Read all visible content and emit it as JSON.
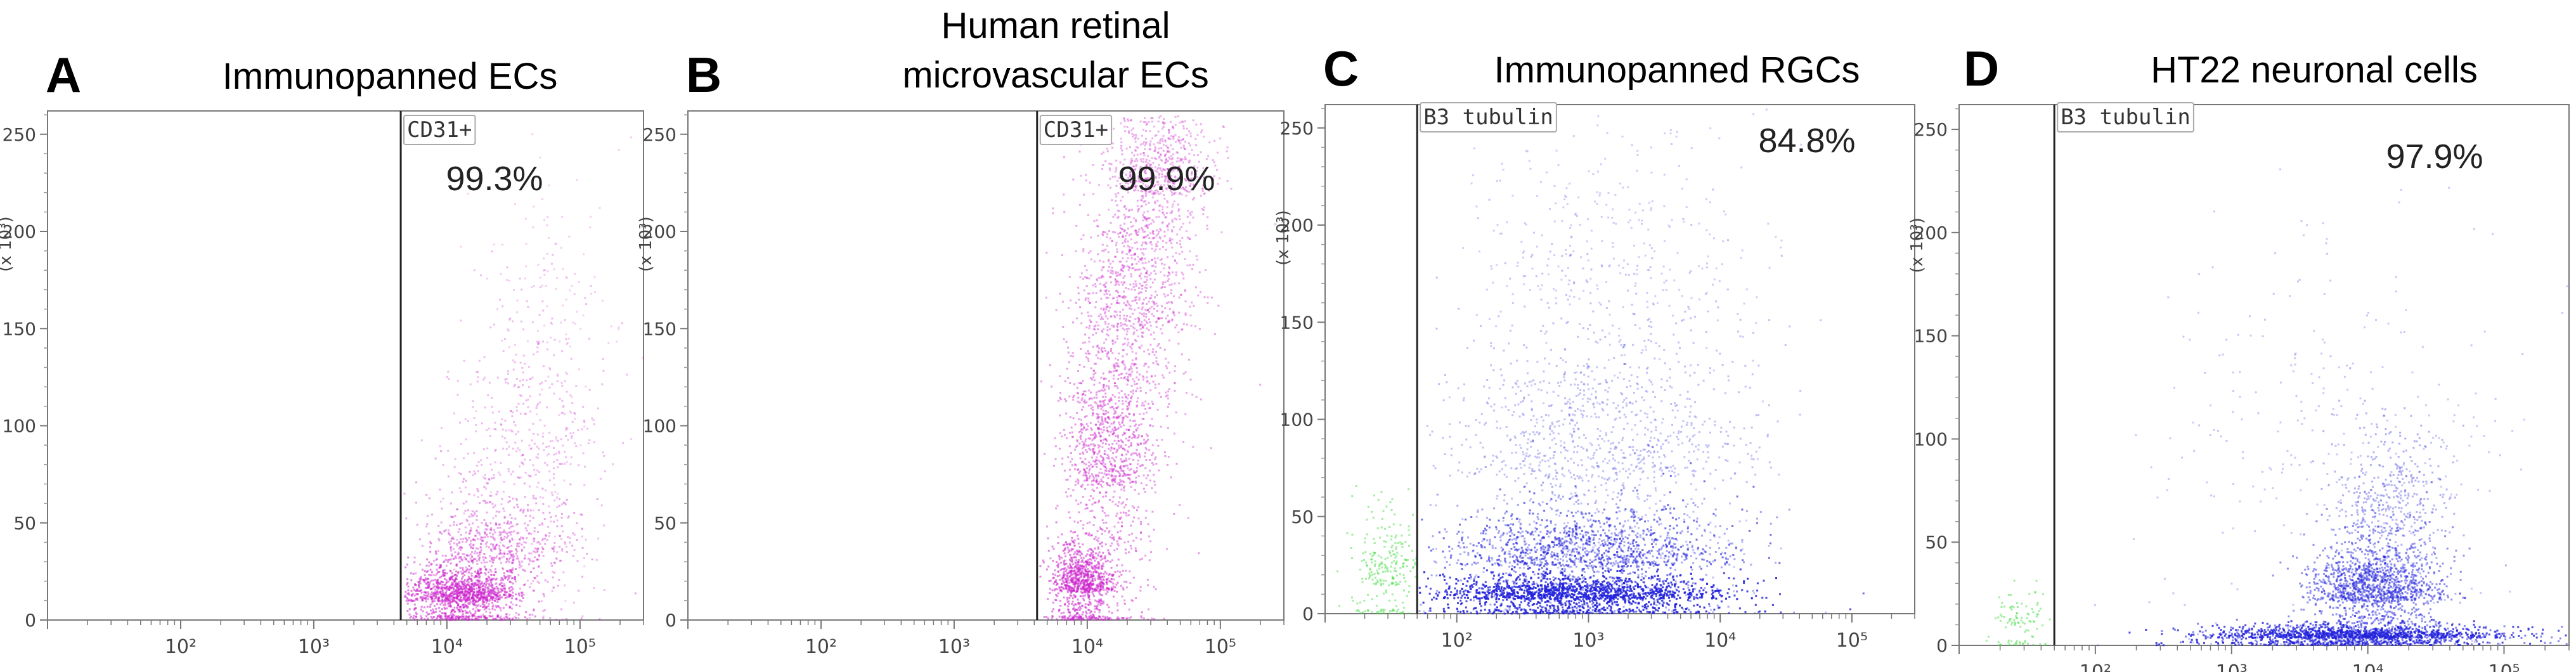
{
  "chart_data": [
    {
      "type": "scatter",
      "panel_label": "A",
      "title_lines": [
        "Immunopanned ECs"
      ],
      "x_scale": "log",
      "xlim": [
        10,
        300000
      ],
      "x_ticks": [
        100,
        1000,
        10000,
        100000
      ],
      "x_tick_labels": [
        "10²",
        "10³",
        "10⁴",
        "10⁵"
      ],
      "y_unit_label": "(x 10³)",
      "ylim": [
        0,
        262
      ],
      "y_ticks": [
        0,
        50,
        100,
        150,
        200,
        250
      ],
      "gate": {
        "label": "CD31+",
        "x_min": 4500,
        "percent": "99.3%"
      },
      "point_color": "#cc22cc",
      "clusters": [
        {
          "cx_log": 4.1,
          "sx_log": 0.22,
          "cy": 10,
          "sy": 9,
          "n": 1300,
          "dens": 0.55
        },
        {
          "cx_log": 4.35,
          "sx_log": 0.28,
          "cy": 30,
          "sy": 18,
          "n": 700,
          "dens": 0.4
        },
        {
          "cx_log": 4.6,
          "sx_log": 0.3,
          "cy": 75,
          "sy": 45,
          "n": 450,
          "dens": 0.3
        },
        {
          "cx_log": 4.85,
          "sx_log": 0.25,
          "cy": 140,
          "sy": 60,
          "n": 150,
          "dens": 0.22
        }
      ]
    },
    {
      "type": "scatter",
      "panel_label": "B",
      "title_lines": [
        "Human retinal",
        "microvascular ECs"
      ],
      "x_scale": "log",
      "xlim": [
        10,
        300000
      ],
      "x_ticks": [
        100,
        1000,
        10000,
        100000
      ],
      "x_tick_labels": [
        "10²",
        "10³",
        "10⁴",
        "10⁵"
      ],
      "y_unit_label": "(x 10³)",
      "ylim": [
        0,
        262
      ],
      "y_ticks": [
        0,
        50,
        100,
        150,
        200,
        250
      ],
      "gate": {
        "label": "CD31+",
        "x_min": 4200,
        "percent": "99.9%"
      },
      "point_color": "#cc22cc",
      "clusters": [
        {
          "cx_log": 3.95,
          "sx_log": 0.12,
          "cy": 15,
          "sy": 12,
          "n": 900,
          "dens": 0.55
        },
        {
          "cx_log": 4.15,
          "sx_log": 0.18,
          "cy": 70,
          "sy": 40,
          "n": 1100,
          "dens": 0.45
        },
        {
          "cx_log": 4.35,
          "sx_log": 0.22,
          "cy": 150,
          "sy": 45,
          "n": 1000,
          "dens": 0.4
        },
        {
          "cx_log": 4.55,
          "sx_log": 0.2,
          "cy": 220,
          "sy": 25,
          "n": 700,
          "dens": 0.35
        }
      ]
    },
    {
      "type": "scatter",
      "panel_label": "C",
      "title_lines": [
        "Immunopanned RGCs"
      ],
      "x_scale": "log",
      "xlim": [
        10,
        300000
      ],
      "x_ticks": [
        100,
        1000,
        10000,
        100000
      ],
      "x_tick_labels": [
        "10²",
        "10³",
        "10⁴",
        "10⁵"
      ],
      "y_unit_label": "(x 10³)",
      "ylim": [
        0,
        262
      ],
      "y_ticks": [
        0,
        50,
        100,
        150,
        200,
        250
      ],
      "gate": {
        "label": "B3 tubulin",
        "x_min": 50,
        "percent": "84.8%"
      },
      "point_color": "#2222dd",
      "outside_color": "#44dd44",
      "clusters": [
        {
          "cx_log": 2.9,
          "sx_log": 0.55,
          "cy": 8,
          "sy": 6,
          "n": 3500,
          "dens": 0.55
        },
        {
          "cx_log": 3.0,
          "sx_log": 0.55,
          "cy": 25,
          "sy": 16,
          "n": 2200,
          "dens": 0.4
        },
        {
          "cx_log": 3.1,
          "sx_log": 0.6,
          "cy": 70,
          "sy": 45,
          "n": 1200,
          "dens": 0.28
        },
        {
          "cx_log": 3.2,
          "sx_log": 0.6,
          "cy": 160,
          "sy": 60,
          "n": 400,
          "dens": 0.22
        }
      ],
      "outside_clusters": [
        {
          "cx_log": 1.45,
          "sx_log": 0.12,
          "cy": 15,
          "sy": 20,
          "n": 250,
          "dens": 0.5
        }
      ]
    },
    {
      "type": "scatter",
      "panel_label": "D",
      "title_lines": [
        "HT22 neuronal cells"
      ],
      "x_scale": "log",
      "xlim": [
        10,
        300000
      ],
      "x_ticks": [
        100,
        1000,
        10000,
        100000
      ],
      "x_tick_labels": [
        "10²",
        "10³",
        "10⁴",
        "10⁵"
      ],
      "y_unit_label": "(x 10³)",
      "ylim": [
        0,
        262
      ],
      "y_ticks": [
        0,
        50,
        100,
        150,
        200,
        250
      ],
      "gate": {
        "label": "B3 tubulin",
        "x_min": 50,
        "percent": "97.9%"
      },
      "point_color": "#2222dd",
      "outside_color": "#44dd44",
      "clusters": [
        {
          "cx_log": 3.9,
          "sx_log": 0.55,
          "cy": 4,
          "sy": 3,
          "n": 2500,
          "dens": 0.55
        },
        {
          "cx_log": 4.05,
          "sx_log": 0.25,
          "cy": 22,
          "sy": 14,
          "n": 1500,
          "dens": 0.5
        },
        {
          "cx_log": 4.15,
          "sx_log": 0.2,
          "cy": 55,
          "sy": 25,
          "n": 500,
          "dens": 0.35
        },
        {
          "cx_log": 3.8,
          "sx_log": 0.7,
          "cy": 70,
          "sy": 60,
          "n": 300,
          "dens": 0.25
        }
      ],
      "outside_clusters": [
        {
          "cx_log": 1.45,
          "sx_log": 0.1,
          "cy": 8,
          "sy": 10,
          "n": 100,
          "dens": 0.5
        }
      ]
    }
  ]
}
